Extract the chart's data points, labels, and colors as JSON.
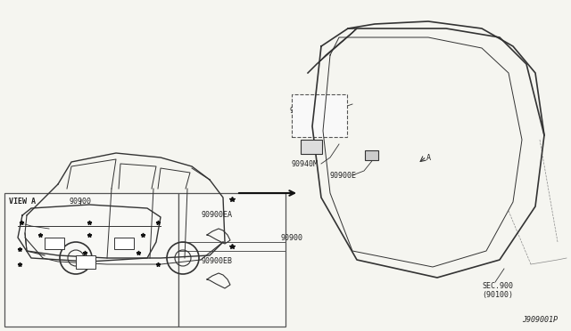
{
  "bg_color": "#f5f5f0",
  "border_color": "#333333",
  "line_color": "#333333",
  "text_color": "#222222",
  "title_text": "",
  "part_labels": {
    "sec900": "SEC.900\n(90100)",
    "90900_main": "90900",
    "90900EA": "90900EA",
    "90900EB": "90900EB",
    "90900_left": "90900",
    "90940M": "90940M",
    "90900E": "90900E",
    "view_a": "VIEW A",
    "diagram_id": "J909001P"
  },
  "arrow_color": "#111111",
  "light_gray": "#aaaaaa",
  "panel_bg": "#ffffff",
  "star_color": "#111111"
}
